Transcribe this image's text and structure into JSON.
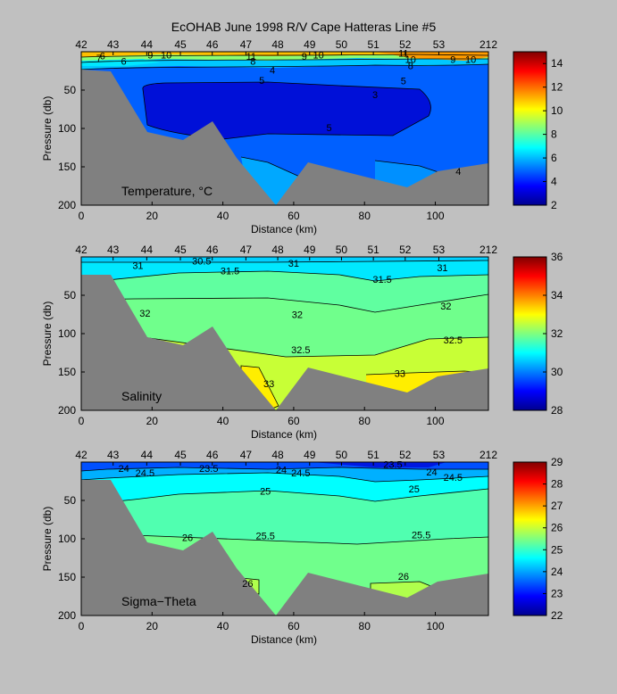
{
  "figure": {
    "title": "EcOHAB   June 1998   R/V Cape Hatteras   Line #5"
  },
  "chart_data": [
    {
      "type": "heatmap",
      "panel_label": "Temperature, °C",
      "xlabel": "Distance (km)",
      "ylabel": "Pressure (db)",
      "xlim": [
        0,
        115
      ],
      "ylim": [
        200,
        0
      ],
      "x_ticks": [
        0,
        20,
        40,
        60,
        80,
        100
      ],
      "y_ticks": [
        50,
        100,
        150,
        200
      ],
      "station_labels": [
        "42",
        "43",
        "44",
        "45",
        "46",
        "47",
        "48",
        "49",
        "50",
        "51",
        "52",
        "53",
        "212"
      ],
      "station_km": [
        0,
        9,
        18.5,
        28,
        37,
        46.5,
        55.5,
        64.5,
        73.5,
        82.5,
        91.5,
        101,
        115
      ],
      "colorbar": {
        "min": 2,
        "max": 15,
        "ticks": [
          2,
          4,
          6,
          8,
          10,
          12,
          14
        ]
      },
      "contour_labels": [
        {
          "text": "6",
          "x": 6,
          "y": 5
        },
        {
          "text": "7",
          "x": 5,
          "y": 8
        },
        {
          "text": "6",
          "x": 12,
          "y": 12
        },
        {
          "text": "9",
          "x": 19.5,
          "y": 4
        },
        {
          "text": "10",
          "x": 24,
          "y": 4
        },
        {
          "text": "11",
          "x": 48,
          "y": 6
        },
        {
          "text": "8",
          "x": 48.5,
          "y": 12
        },
        {
          "text": "9",
          "x": 63,
          "y": 6
        },
        {
          "text": "10",
          "x": 67,
          "y": 4
        },
        {
          "text": "4",
          "x": 54,
          "y": 24
        },
        {
          "text": "5",
          "x": 51,
          "y": 37
        },
        {
          "text": "11",
          "x": 91,
          "y": 2
        },
        {
          "text": "10",
          "x": 93,
          "y": 10
        },
        {
          "text": "8",
          "x": 93,
          "y": 18
        },
        {
          "text": "9",
          "x": 105,
          "y": 10
        },
        {
          "text": "10",
          "x": 110,
          "y": 10
        },
        {
          "text": "5",
          "x": 91,
          "y": 38
        },
        {
          "text": "3",
          "x": 83,
          "y": 56
        },
        {
          "text": "5",
          "x": 70,
          "y": 99
        },
        {
          "text": "4",
          "x": 106.5,
          "y": 156
        }
      ]
    },
    {
      "type": "heatmap",
      "panel_label": "Salinity",
      "xlabel": "Distance (km)",
      "ylabel": "Pressure (db)",
      "xlim": [
        0,
        115
      ],
      "ylim": [
        200,
        0
      ],
      "x_ticks": [
        0,
        20,
        40,
        60,
        80,
        100
      ],
      "y_ticks": [
        50,
        100,
        150,
        200
      ],
      "station_labels": [
        "42",
        "43",
        "44",
        "45",
        "46",
        "47",
        "48",
        "49",
        "50",
        "51",
        "52",
        "53",
        "212"
      ],
      "station_km": [
        0,
        9,
        18.5,
        28,
        37,
        46.5,
        55.5,
        64.5,
        73.5,
        82.5,
        91.5,
        101,
        115
      ],
      "colorbar": {
        "min": 28,
        "max": 36,
        "ticks": [
          28,
          30,
          32,
          34,
          36
        ]
      },
      "contour_labels": [
        {
          "text": "31",
          "x": 16,
          "y": 11
        },
        {
          "text": "30.5",
          "x": 34,
          "y": 5
        },
        {
          "text": "31.5",
          "x": 42,
          "y": 18
        },
        {
          "text": "31",
          "x": 60,
          "y": 8
        },
        {
          "text": "31.5",
          "x": 85,
          "y": 29
        },
        {
          "text": "31",
          "x": 102,
          "y": 14
        },
        {
          "text": "32",
          "x": 18,
          "y": 73
        },
        {
          "text": "32",
          "x": 61,
          "y": 75
        },
        {
          "text": "32",
          "x": 103,
          "y": 64
        },
        {
          "text": "32.5",
          "x": 62,
          "y": 121
        },
        {
          "text": "32.5",
          "x": 105,
          "y": 108
        },
        {
          "text": "33",
          "x": 90,
          "y": 152
        },
        {
          "text": "33",
          "x": 53,
          "y": 165
        }
      ]
    },
    {
      "type": "heatmap",
      "panel_label": "Sigma−Theta",
      "xlabel": "Distance (km)",
      "ylabel": "Pressure (db)",
      "xlim": [
        0,
        115
      ],
      "ylim": [
        200,
        0
      ],
      "x_ticks": [
        0,
        20,
        40,
        60,
        80,
        100
      ],
      "y_ticks": [
        50,
        100,
        150,
        200
      ],
      "station_labels": [
        "42",
        "43",
        "44",
        "45",
        "46",
        "47",
        "48",
        "49",
        "50",
        "51",
        "52",
        "53",
        "212"
      ],
      "station_km": [
        0,
        9,
        18.5,
        28,
        37,
        46.5,
        55.5,
        64.5,
        73.5,
        82.5,
        91.5,
        101,
        115
      ],
      "colorbar": {
        "min": 22,
        "max": 29,
        "ticks": [
          22,
          23,
          24,
          25,
          26,
          27,
          28,
          29
        ]
      },
      "contour_labels": [
        {
          "text": "24",
          "x": 12,
          "y": 8
        },
        {
          "text": "24.5",
          "x": 18,
          "y": 14
        },
        {
          "text": "23.5",
          "x": 36,
          "y": 8
        },
        {
          "text": "24",
          "x": 56.5,
          "y": 10
        },
        {
          "text": "24.5",
          "x": 62,
          "y": 14
        },
        {
          "text": "23.5",
          "x": 88,
          "y": 3
        },
        {
          "text": "24",
          "x": 99,
          "y": 13
        },
        {
          "text": "24.5",
          "x": 105,
          "y": 20
        },
        {
          "text": "25",
          "x": 52,
          "y": 38
        },
        {
          "text": "25",
          "x": 94,
          "y": 35
        },
        {
          "text": "25.5",
          "x": 52,
          "y": 96
        },
        {
          "text": "25.5",
          "x": 96,
          "y": 95
        },
        {
          "text": "26",
          "x": 30,
          "y": 98
        },
        {
          "text": "26",
          "x": 91,
          "y": 149
        },
        {
          "text": "26",
          "x": 47,
          "y": 158
        }
      ]
    }
  ]
}
